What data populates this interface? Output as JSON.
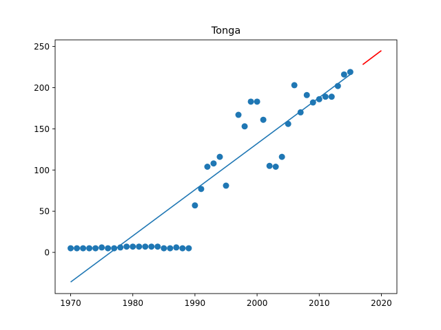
{
  "chart_data": {
    "type": "scatter",
    "title": "Tonga",
    "xlabel": "",
    "ylabel": "",
    "xlim": [
      1967.5,
      2022.5
    ],
    "ylim": [
      -50,
      258
    ],
    "xticks": [
      1970,
      1980,
      1990,
      2000,
      2010,
      2020
    ],
    "yticks": [
      0,
      50,
      100,
      150,
      200,
      250
    ],
    "grid": false,
    "legend": "none",
    "colors": {
      "points": "#1f77b4",
      "fit": "#1f77b4",
      "forecast": "#ff0000"
    },
    "series": [
      {
        "kind": "scatter",
        "x": [
          1970,
          1971,
          1972,
          1973,
          1974,
          1975,
          1976,
          1977,
          1978,
          1979,
          1980,
          1981,
          1982,
          1983,
          1984,
          1985,
          1986,
          1987,
          1988,
          1989,
          1990,
          1991,
          1992,
          1993,
          1994,
          1995,
          1997,
          1998,
          1999,
          2000,
          2001,
          2002,
          2003,
          2004,
          2005,
          2006,
          2007,
          2008,
          2009,
          2010,
          2011,
          2012,
          2013,
          2014,
          2015
        ],
        "y": [
          5,
          5,
          5,
          5,
          5,
          6,
          5,
          5,
          6,
          7,
          7,
          7,
          7,
          7,
          7,
          5,
          5,
          6,
          5,
          5,
          57,
          77,
          104,
          108,
          116,
          81,
          167,
          153,
          183,
          183,
          161,
          105,
          104,
          116,
          156,
          203,
          170,
          191,
          182,
          186,
          189,
          189,
          202,
          216,
          219
        ]
      },
      {
        "kind": "line",
        "x": [
          1970,
          2015
        ],
        "y": [
          -36,
          216
        ]
      },
      {
        "kind": "line",
        "x": [
          2017,
          2020
        ],
        "y": [
          228,
          245
        ]
      }
    ]
  }
}
